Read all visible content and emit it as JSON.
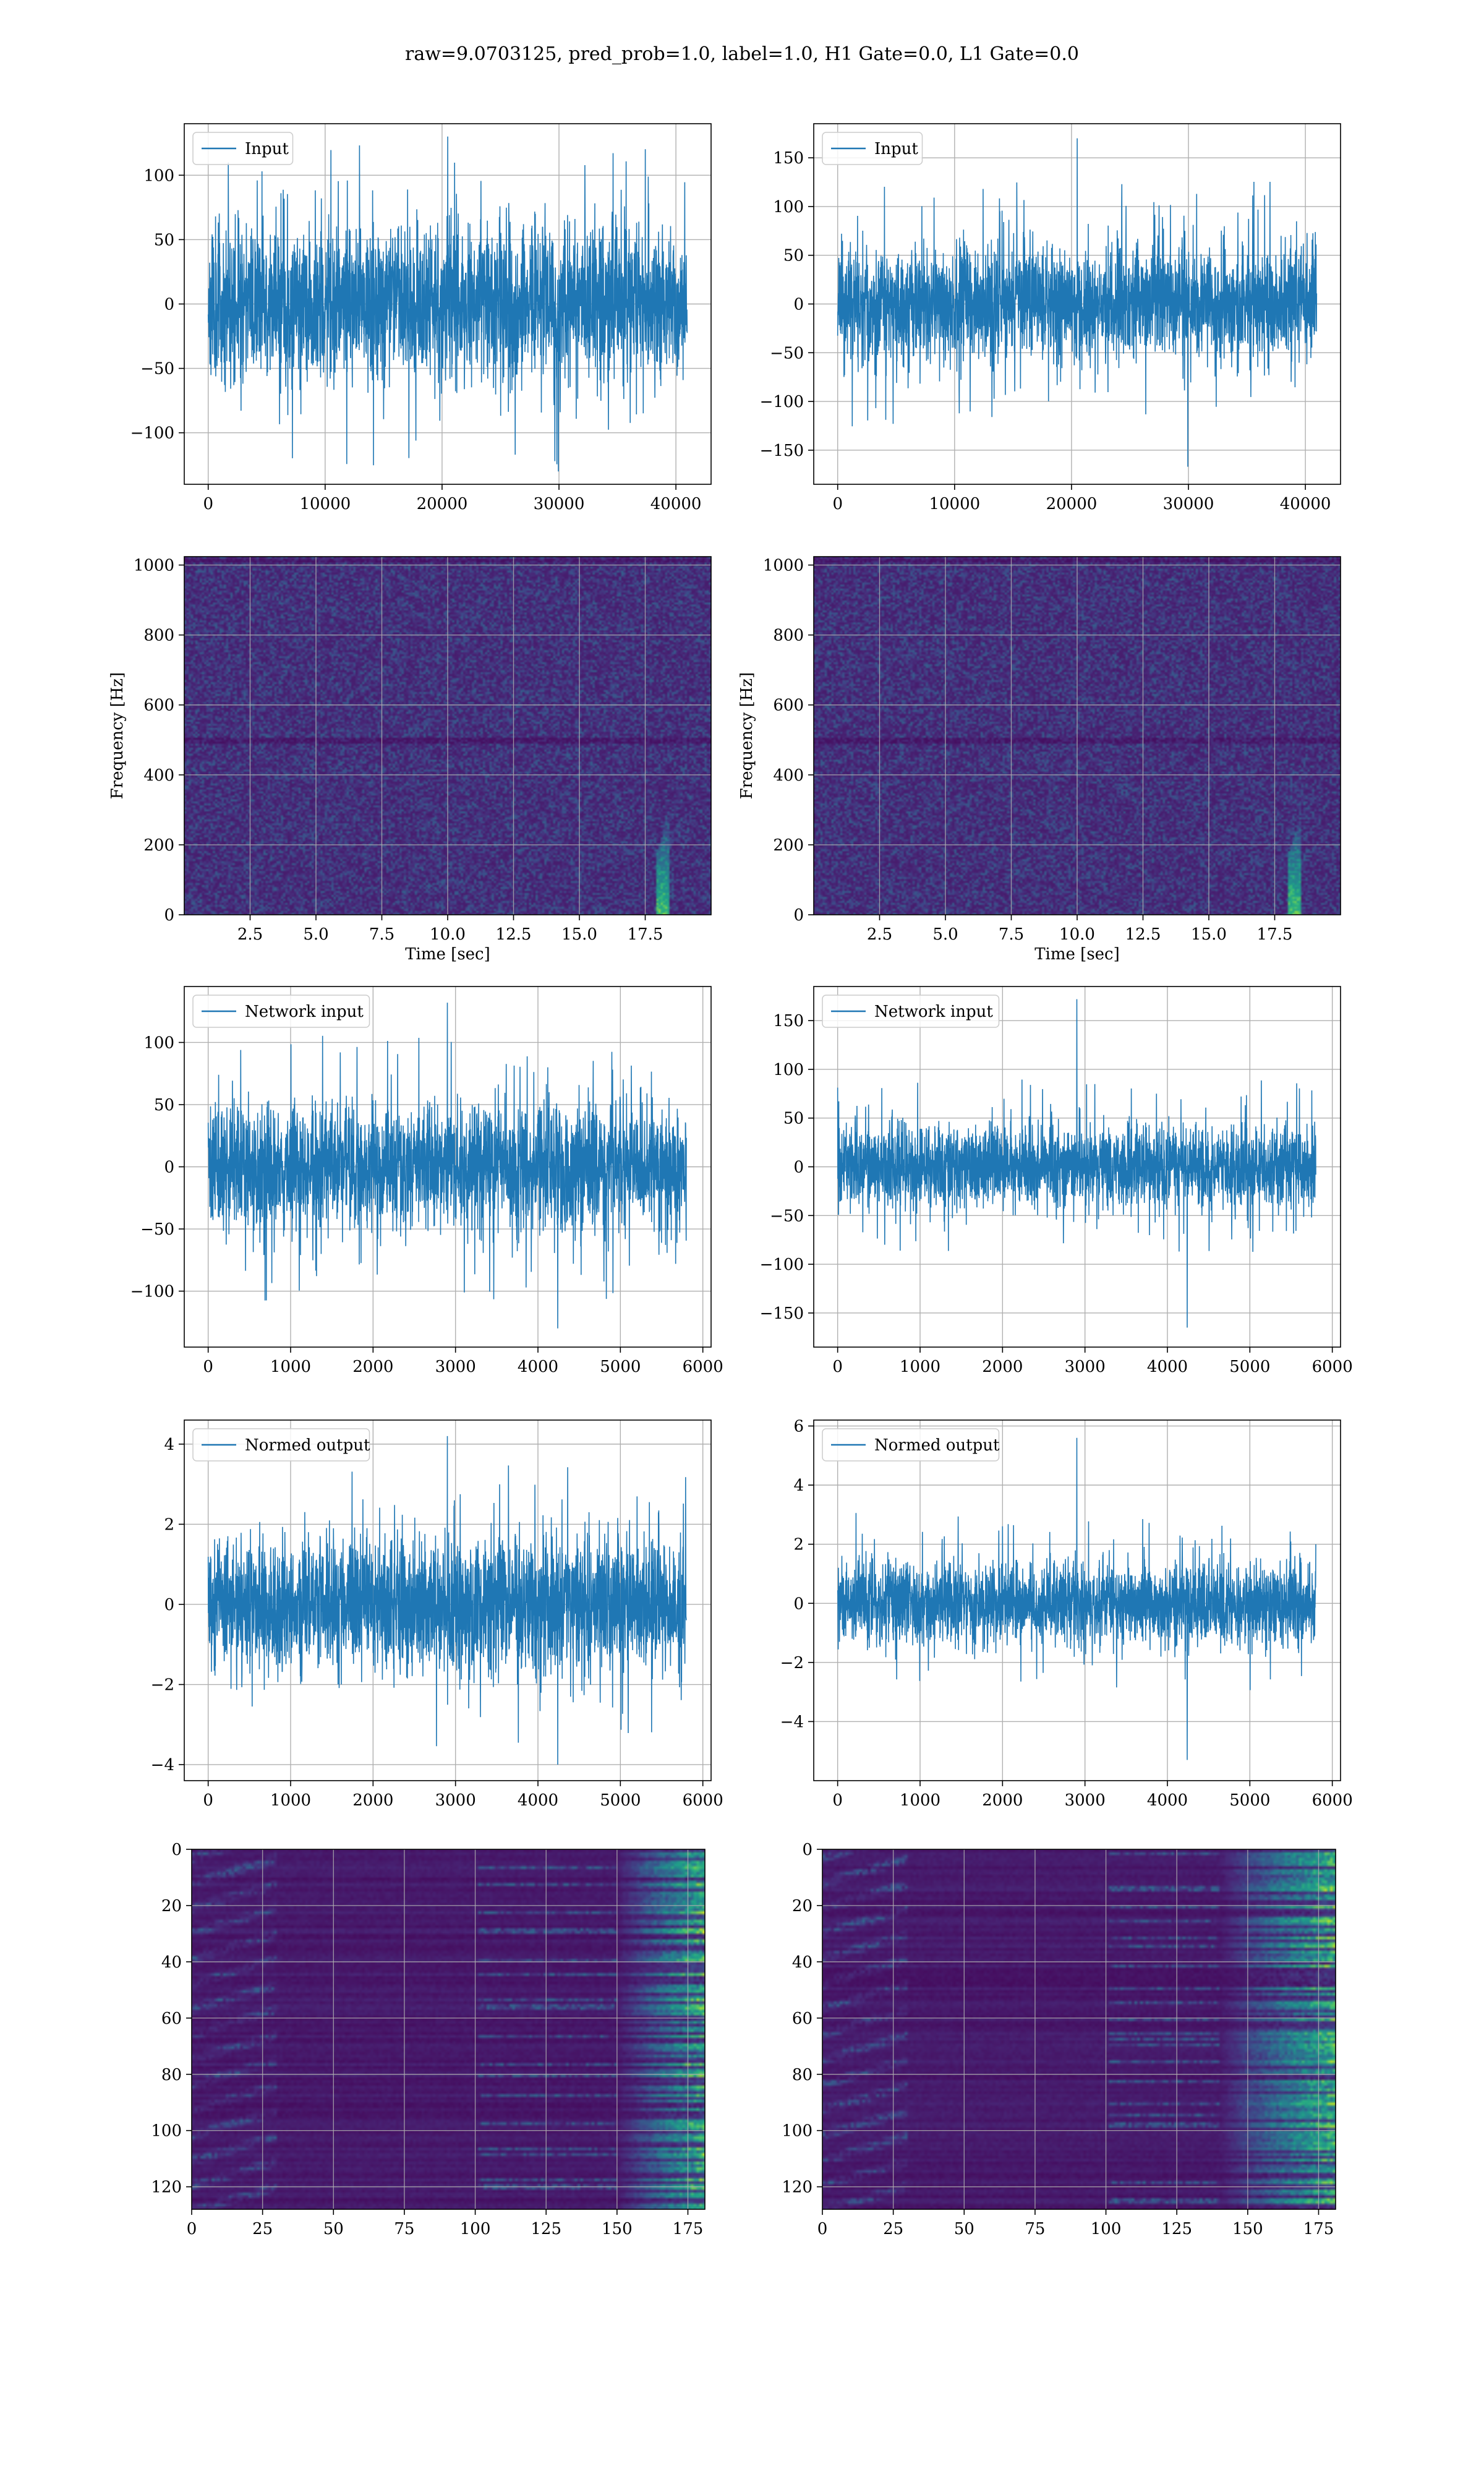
{
  "figure": {
    "suptitle": "raw=9.0703125, pred_prob=1.0, label=1.0, H1 Gate=0.0, L1 Gate=0.0"
  },
  "colors": {
    "line": "#1f77b4",
    "grid": "#b0b0b0",
    "viridis_low": "#440154",
    "viridis_high": "#fde725"
  },
  "chart_data": [
    {
      "id": "h1-input",
      "type": "line",
      "title": "",
      "xlabel": "",
      "ylabel": "",
      "legend": [
        "Input"
      ],
      "legend_loc": "upper-left",
      "grid": true,
      "xlim": [
        -2048,
        43008
      ],
      "ylim": [
        -140,
        140
      ],
      "xticks": [
        0,
        10000,
        20000,
        30000,
        40000
      ],
      "xtick_labels": [
        "0",
        "10000",
        "20000",
        "30000",
        "40000"
      ],
      "yticks": [
        100,
        50,
        0,
        -50,
        -100
      ],
      "ytick_labels": [
        "100",
        "50",
        "0",
        "−50",
        "−100"
      ],
      "series": [
        {
          "x_range": [
            0,
            40960
          ],
          "band": [
            -70,
            70
          ],
          "peak_max": 130,
          "peak_min": -130,
          "seed": 11
        }
      ]
    },
    {
      "id": "l1-input",
      "type": "line",
      "title": "",
      "xlabel": "",
      "ylabel": "",
      "legend": [
        "Input"
      ],
      "legend_loc": "upper-left",
      "grid": true,
      "xlim": [
        -2048,
        43008
      ],
      "ylim": [
        -185,
        185
      ],
      "xticks": [
        0,
        10000,
        20000,
        30000,
        40000
      ],
      "xtick_labels": [
        "0",
        "10000",
        "20000",
        "30000",
        "40000"
      ],
      "yticks": [
        150,
        100,
        50,
        0,
        -50,
        -100,
        -150
      ],
      "ytick_labels": [
        "150",
        "100",
        "50",
        "0",
        "−50",
        "−100",
        "−150"
      ],
      "series": [
        {
          "x_range": [
            0,
            40960
          ],
          "band": [
            -70,
            70
          ],
          "peak_max": 170,
          "peak_min": -167,
          "seed": 23
        }
      ]
    },
    {
      "id": "h1-spectrogram",
      "type": "heatmap",
      "title": "",
      "xlabel": "Time [sec]",
      "ylabel": "Frequency [Hz]",
      "grid": true,
      "xlim": [
        0,
        20
      ],
      "ylim": [
        0,
        1024
      ],
      "xticks": [
        2.5,
        5.0,
        7.5,
        10.0,
        12.5,
        15.0,
        17.5
      ],
      "xtick_labels": [
        "2.5",
        "5.0",
        "7.5",
        "10.0",
        "12.5",
        "15.0",
        "17.5"
      ],
      "yticks": [
        0,
        200,
        400,
        600,
        800,
        1000
      ],
      "ytick_labels": [
        "0",
        "200",
        "400",
        "600",
        "800",
        "1000"
      ],
      "colormap": "viridis",
      "features": {
        "chirp_time": 18.1,
        "chirp_fmax": 230,
        "seed": 5
      }
    },
    {
      "id": "l1-spectrogram",
      "type": "heatmap",
      "title": "",
      "xlabel": "Time [sec]",
      "ylabel": "Frequency [Hz]",
      "grid": true,
      "xlim": [
        0,
        20
      ],
      "ylim": [
        0,
        1024
      ],
      "xticks": [
        2.5,
        5.0,
        7.5,
        10.0,
        12.5,
        15.0,
        17.5
      ],
      "xtick_labels": [
        "2.5",
        "5.0",
        "7.5",
        "10.0",
        "12.5",
        "15.0",
        "17.5"
      ],
      "yticks": [
        0,
        200,
        400,
        600,
        800,
        1000
      ],
      "ytick_labels": [
        "0",
        "200",
        "400",
        "600",
        "800",
        "1000"
      ],
      "colormap": "viridis",
      "features": {
        "chirp_time": 18.2,
        "chirp_fmax": 230,
        "seed": 9
      }
    },
    {
      "id": "h1-network-input",
      "type": "line",
      "title": "",
      "xlabel": "",
      "ylabel": "",
      "legend": [
        "Network input"
      ],
      "legend_loc": "upper-left",
      "grid": true,
      "xlim": [
        -290,
        6100
      ],
      "ylim": [
        -145,
        145
      ],
      "xticks": [
        0,
        1000,
        2000,
        3000,
        4000,
        5000,
        6000
      ],
      "xtick_labels": [
        "0",
        "1000",
        "2000",
        "3000",
        "4000",
        "5000",
        "6000"
      ],
      "yticks": [
        100,
        50,
        0,
        -50,
        -100
      ],
      "ytick_labels": [
        "100",
        "50",
        "0",
        "−50",
        "−100"
      ],
      "series": [
        {
          "x_range": [
            0,
            5800
          ],
          "band": [
            -60,
            60
          ],
          "peak_max": 132,
          "peak_min": -130,
          "seed": 31
        }
      ]
    },
    {
      "id": "l1-network-input",
      "type": "line",
      "title": "",
      "xlabel": "",
      "ylabel": "",
      "legend": [
        "Network input"
      ],
      "legend_loc": "upper-left",
      "grid": true,
      "xlim": [
        -290,
        6100
      ],
      "ylim": [
        -185,
        185
      ],
      "xticks": [
        0,
        1000,
        2000,
        3000,
        4000,
        5000,
        6000
      ],
      "xtick_labels": [
        "0",
        "1000",
        "2000",
        "3000",
        "4000",
        "5000",
        "6000"
      ],
      "yticks": [
        150,
        100,
        50,
        0,
        -50,
        -100,
        -150
      ],
      "ytick_labels": [
        "150",
        "100",
        "50",
        "0",
        "−50",
        "−100",
        "−150"
      ],
      "series": [
        {
          "x_range": [
            0,
            5800
          ],
          "band": [
            -50,
            50
          ],
          "peak_max": 172,
          "peak_min": -165,
          "seed": 47
        }
      ]
    },
    {
      "id": "h1-normed-output",
      "type": "line",
      "title": "",
      "xlabel": "",
      "ylabel": "",
      "legend": [
        "Normed output"
      ],
      "legend_loc": "upper-left",
      "grid": true,
      "xlim": [
        -290,
        6100
      ],
      "ylim": [
        -4.4,
        4.6
      ],
      "xticks": [
        0,
        1000,
        2000,
        3000,
        4000,
        5000,
        6000
      ],
      "xtick_labels": [
        "0",
        "1000",
        "2000",
        "3000",
        "4000",
        "5000",
        "6000"
      ],
      "yticks": [
        4,
        2,
        0,
        -2,
        -4
      ],
      "ytick_labels": [
        "4",
        "2",
        "0",
        "−2",
        "−4"
      ],
      "series": [
        {
          "x_range": [
            0,
            5800
          ],
          "band": [
            -2.0,
            2.0
          ],
          "peak_max": 4.2,
          "peak_min": -4.0,
          "seed": 53
        }
      ]
    },
    {
      "id": "l1-normed-output",
      "type": "line",
      "title": "",
      "xlabel": "",
      "ylabel": "",
      "legend": [
        "Normed output"
      ],
      "legend_loc": "upper-left",
      "grid": true,
      "xlim": [
        -290,
        6100
      ],
      "ylim": [
        -6.0,
        6.2
      ],
      "xticks": [
        0,
        1000,
        2000,
        3000,
        4000,
        5000,
        6000
      ],
      "xtick_labels": [
        "0",
        "1000",
        "2000",
        "3000",
        "4000",
        "5000",
        "6000"
      ],
      "yticks": [
        6,
        4,
        2,
        0,
        -2,
        -4
      ],
      "ytick_labels": [
        "6",
        "4",
        "2",
        "0",
        "−2",
        "−4"
      ],
      "series": [
        {
          "x_range": [
            0,
            5800
          ],
          "band": [
            -1.7,
            1.7
          ],
          "peak_max": 5.6,
          "peak_min": -5.3,
          "seed": 61
        }
      ]
    },
    {
      "id": "h1-feature-map",
      "type": "heatmap",
      "title": "",
      "xlabel": "",
      "ylabel": "",
      "grid": true,
      "xlim": [
        0,
        181
      ],
      "ylim": [
        128,
        0
      ],
      "rows": 128,
      "cols": 181,
      "xticks": [
        0,
        25,
        50,
        75,
        100,
        125,
        150,
        175
      ],
      "xtick_labels": [
        "0",
        "25",
        "50",
        "75",
        "100",
        "125",
        "150",
        "175"
      ],
      "yticks": [
        0,
        20,
        40,
        60,
        80,
        100,
        120
      ],
      "ytick_labels": [
        "0",
        "20",
        "40",
        "60",
        "80",
        "100",
        "120"
      ],
      "colormap": "viridis",
      "features": {
        "hot_cols_from": 150,
        "seed": 71
      }
    },
    {
      "id": "l1-feature-map",
      "type": "heatmap",
      "title": "",
      "xlabel": "",
      "ylabel": "",
      "grid": true,
      "xlim": [
        0,
        181
      ],
      "ylim": [
        128,
        0
      ],
      "rows": 128,
      "cols": 181,
      "xticks": [
        0,
        25,
        50,
        75,
        100,
        125,
        150,
        175
      ],
      "xtick_labels": [
        "0",
        "25",
        "50",
        "75",
        "100",
        "125",
        "150",
        "175"
      ],
      "yticks": [
        0,
        20,
        40,
        60,
        80,
        100,
        120
      ],
      "ytick_labels": [
        "0",
        "20",
        "40",
        "60",
        "80",
        "100",
        "120"
      ],
      "colormap": "viridis",
      "features": {
        "hot_cols_from": 140,
        "seed": 83
      }
    }
  ]
}
